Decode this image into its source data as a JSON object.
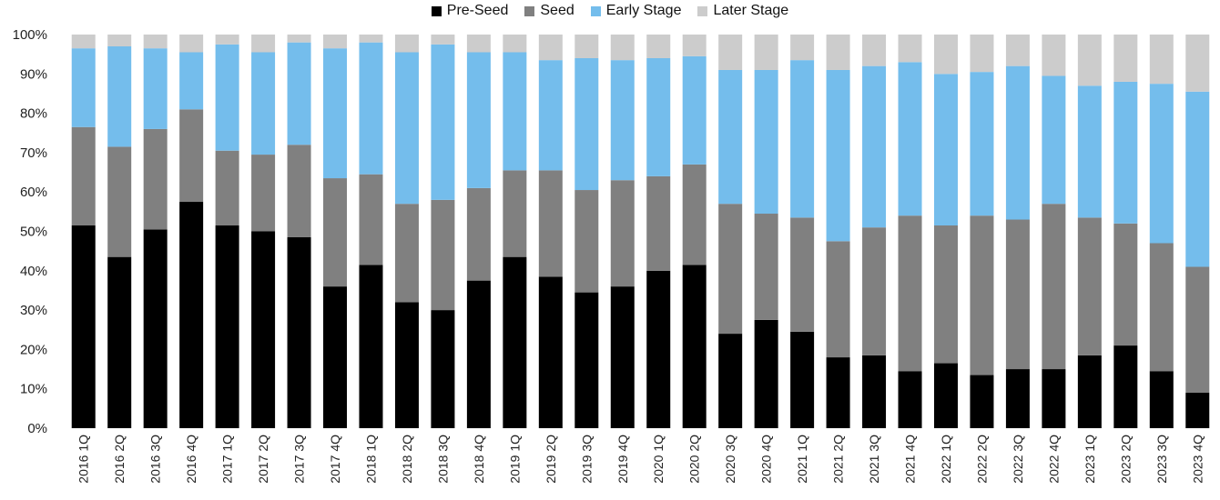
{
  "chart_data": {
    "type": "bar",
    "stacked": true,
    "categories": [
      "2016 1Q",
      "2016 2Q",
      "2016 3Q",
      "2016 4Q",
      "2017 1Q",
      "2017 2Q",
      "2017 3Q",
      "2017 4Q",
      "2018 1Q",
      "2018 2Q",
      "2018 3Q",
      "2018 4Q",
      "2019 1Q",
      "2019 2Q",
      "2019 3Q",
      "2019 4Q",
      "2020 1Q",
      "2020 2Q",
      "2020 3Q",
      "2020 4Q",
      "2021 1Q",
      "2021 2Q",
      "2021 3Q",
      "2021 4Q",
      "2022 1Q",
      "2022 2Q",
      "2022 3Q",
      "2022 4Q",
      "2023 1Q",
      "2023 2Q",
      "2023 3Q",
      "2023 4Q"
    ],
    "series": [
      {
        "name": "Pre-Seed",
        "color": "#000000",
        "values": [
          51.5,
          43.5,
          50.5,
          57.5,
          51.5,
          50,
          48.5,
          36,
          41.5,
          32,
          30,
          37.5,
          43.5,
          38.5,
          34.5,
          36,
          40,
          41.5,
          24,
          27.5,
          24.5,
          18,
          18.5,
          14.5,
          16.5,
          13.5,
          15,
          15,
          18.5,
          21,
          14.5,
          9
        ]
      },
      {
        "name": "Seed",
        "color": "#808080",
        "values": [
          25,
          28,
          25.5,
          23.5,
          19,
          19.5,
          23.5,
          27.5,
          23,
          25,
          28,
          23.5,
          22,
          27,
          26,
          27,
          24,
          25.5,
          33,
          27,
          29,
          29.5,
          32.5,
          39.5,
          35,
          40.5,
          38,
          42,
          35,
          31,
          32.5,
          32
        ]
      },
      {
        "name": "Early Stage",
        "color": "#74bdec",
        "values": [
          20,
          25.5,
          20.5,
          14.5,
          27,
          26,
          26,
          33,
          33.5,
          38.5,
          39.5,
          34.5,
          30,
          28,
          33.5,
          30.5,
          30,
          27.5,
          34,
          36.5,
          40,
          43.5,
          41,
          39,
          38.5,
          36.5,
          39,
          32.5,
          33.5,
          36,
          40.5,
          44.5
        ]
      },
      {
        "name": "Later Stage",
        "color": "#cccccc",
        "values": [
          3.5,
          3,
          3.5,
          4.5,
          2.5,
          4.5,
          2,
          3.5,
          2,
          4.5,
          2.5,
          4.5,
          4.5,
          6.5,
          6,
          6.5,
          6,
          5.5,
          9,
          9,
          6.5,
          9,
          8,
          7,
          10,
          9.5,
          8,
          10.5,
          13,
          12,
          12.5,
          14.5
        ]
      }
    ],
    "y_ticks": [
      "0%",
      "10%",
      "20%",
      "30%",
      "40%",
      "50%",
      "60%",
      "70%",
      "80%",
      "90%",
      "100%"
    ],
    "ylim": [
      0,
      100
    ],
    "legend_position": "top-center",
    "grid": false
  }
}
